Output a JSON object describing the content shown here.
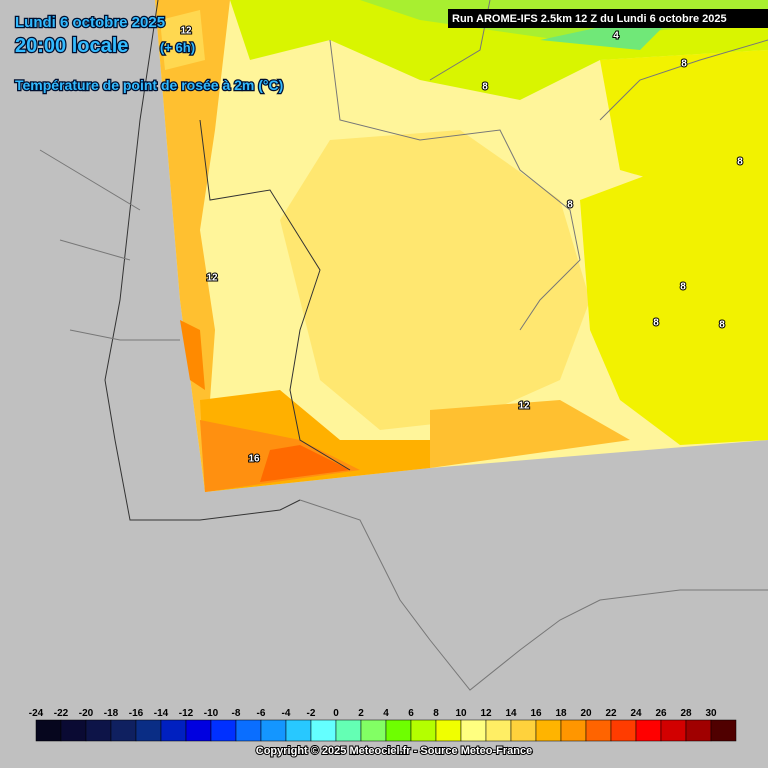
{
  "header": {
    "date": "Lundi 6 octobre 2025",
    "time": "20:00 locale",
    "lead": "(+ 6h)",
    "parameter": "Température de point de rosée à 2m (°C)",
    "run": "Run AROME-IFS 2.5km 12 Z du Lundi 6 octobre 2025"
  },
  "contour_labels": [
    12,
    8,
    4,
    8,
    8,
    8,
    12,
    8,
    8,
    8,
    12,
    16
  ],
  "legend": {
    "ticks": [
      -24,
      -22,
      -20,
      -18,
      -16,
      -14,
      -12,
      -10,
      -8,
      -6,
      -4,
      -2,
      0,
      2,
      4,
      6,
      8,
      10,
      12,
      14,
      16,
      18,
      20,
      22,
      24,
      26,
      28,
      30
    ],
    "colors": [
      "#06061e",
      "#0a0a33",
      "#0d1448",
      "#0f2060",
      "#0a2d85",
      "#0020c0",
      "#0000e0",
      "#0030ff",
      "#0a6eff",
      "#1496ff",
      "#28c8ff",
      "#64ffff",
      "#64ffb4",
      "#82ff64",
      "#6eff00",
      "#b4ff00",
      "#f0ff00",
      "#ffff80",
      "#ffee64",
      "#ffd23c",
      "#ffb400",
      "#ff9600",
      "#ff6400",
      "#ff3c00",
      "#ff0000",
      "#d20000",
      "#a00000",
      "#500000"
    ]
  },
  "footer": {
    "copyright": "Copyright © 2025 Meteociel.fr - Source Meteo-France"
  }
}
